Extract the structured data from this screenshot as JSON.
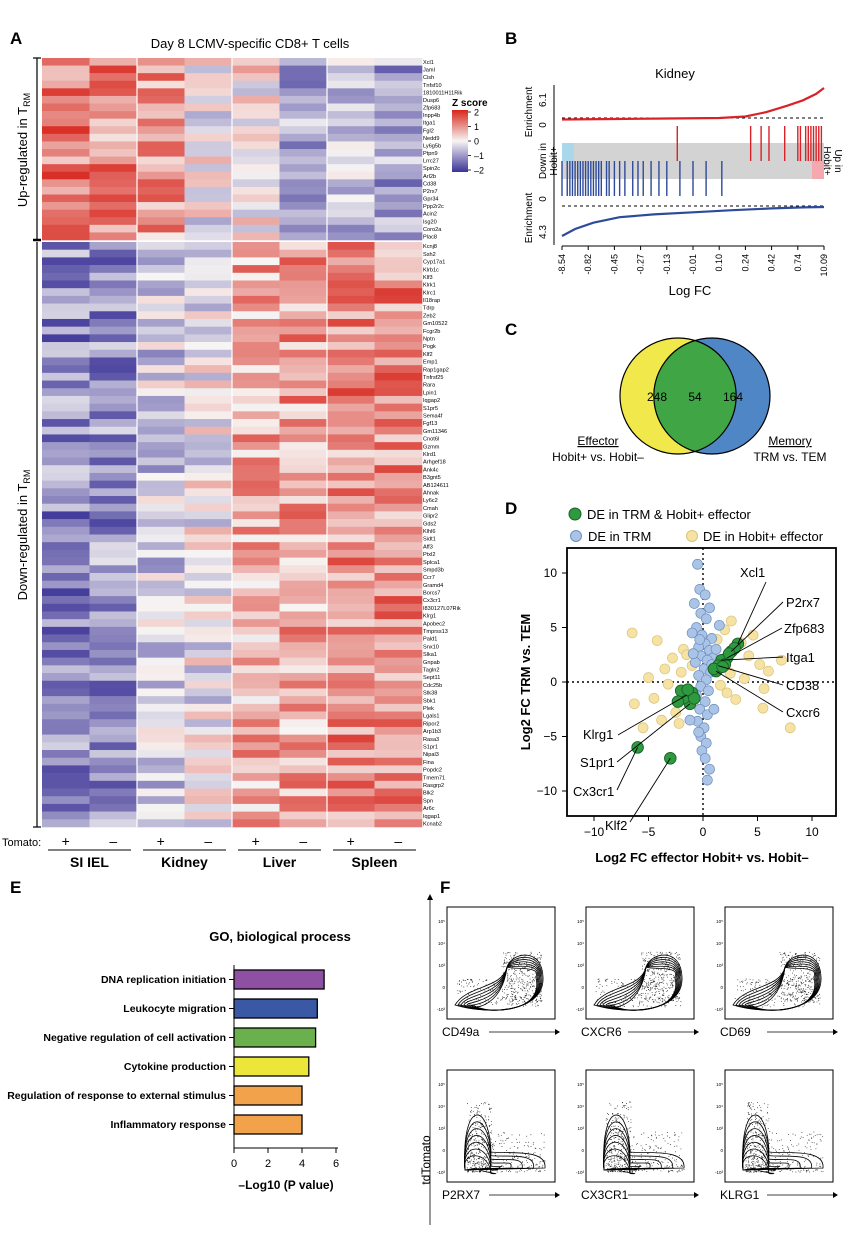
{
  "colors": {
    "zlow": "#3b3397",
    "zmid": "#f7f5f3",
    "zhigh": "#d7261c",
    "enrich_up": "#d92228",
    "enrich_down": "#2e4a9b",
    "venn_left": "#f1e84b",
    "venn_right": "#4f86c6",
    "venn_overlap": "#3fa545",
    "de_both": "#2e9a3f",
    "de_trm": "#a9c4e6",
    "de_hobit": "#f6e3a4",
    "bar_colors": [
      "#8e50a3",
      "#3b58a5",
      "#6ab04c",
      "#ece53a",
      "#f2a24b",
      "#f2a24b"
    ]
  },
  "chart_data": [
    {
      "panel": "A",
      "type": "heatmap",
      "title": "Day 8 LCMV-specific CD8+ T cells",
      "colorbar": {
        "label": "Z score",
        "ticks": [
          "2",
          "1",
          "0",
          "–1",
          "–2"
        ],
        "range": [
          -2,
          2
        ]
      },
      "row_groups": [
        {
          "label": "Up-regulated in T",
          "sub": "RM"
        },
        {
          "label": "Down-regulated in T",
          "sub": "RM"
        }
      ],
      "tomato_label": "Tomato:",
      "tomato_signs": [
        "+",
        "–",
        "+",
        "–",
        "+",
        "–",
        "+",
        "–"
      ],
      "tissues": [
        "SI IEL",
        "Kidney",
        "Liver",
        "Spleen"
      ],
      "genes_up": [
        "Xcl1",
        "Jaml",
        "Cish",
        "Tnfsf10",
        "1810011H11Rik",
        "Dusp6",
        "Zfp683",
        "Inpp4b",
        "Itga1",
        "Fgl2",
        "Nedd9",
        "Ly6g5b",
        "Ptpn9",
        "Lrrc27",
        "Spin2c",
        "Arl2b",
        "Cd38",
        "P2rx7",
        "Gpr34",
        "Ppp2r2c",
        "Acin2",
        "Isg20",
        "Coro2a",
        "Plac8"
      ],
      "genes_down": [
        "Kcnj8",
        "Ssh2",
        "Cyp17a1",
        "Klrb1c",
        "Klf3",
        "Klrk1",
        "Klrc1",
        "Il18rap",
        "Tdrp",
        "Zeb2",
        "Gm10522",
        "Fcgr2b",
        "Nptn",
        "Pogk",
        "Klf2",
        "Emp1",
        "Rap1gap2",
        "Tnfrsf25",
        "Rara",
        "Lpin1",
        "Iqgap2",
        "S1pr5",
        "Sema4f",
        "Fgf13",
        "Gm11346",
        "Cnot6l",
        "Gzmm",
        "Klrd1",
        "Arhgef18",
        "Ank4c",
        "B3gnt5",
        "AB124611",
        "Ahnak",
        "Ly6c2",
        "Cmah",
        "Glipr2",
        "Gds2",
        "Klhl6",
        "Sidt1",
        "Aff3",
        "Ptxl2",
        "Splca1",
        "Smpd3b",
        "Ccr7",
        "Gramd4",
        "Borcs7",
        "Cx3cr1",
        "I830127L07Rik",
        "Klrg1",
        "Apobec2",
        "Tmprss13",
        "Pald1",
        "Snx10",
        "Slka1",
        "Gnpab",
        "Tagln2",
        "Sept11",
        "Cdc25b",
        "Stk38",
        "Sbk1",
        "Plek",
        "Lgals1",
        "Ripor2",
        "Arp1b3",
        "Rasa3",
        "S1pr1",
        "Nipal3",
        "Fina",
        "Popdc2",
        "Tmem71",
        "Rasgrp2",
        "Blk2",
        "Spn",
        "Ar6c",
        "Iqgap1",
        "Kcnab2"
      ],
      "up_profile": [
        1.2,
        1.0,
        0.9,
        -0.1,
        0.1,
        -0.7,
        -0.5,
        -0.8
      ],
      "down_profile": [
        -1.1,
        -1.0,
        -0.4,
        -0.1,
        0.7,
        0.8,
        1.0,
        1.0
      ]
    },
    {
      "panel": "B",
      "type": "line",
      "title": "Kidney",
      "ylabel_top": "Enrichment",
      "top_ticks": [
        "6.1",
        "0"
      ],
      "ylabel_bottom": "Enrichment",
      "bottom_ticks": [
        "0",
        "4.3"
      ],
      "left_band_label": [
        "Down in",
        "Hobit+"
      ],
      "right_band_label": [
        "Up in",
        "Hobit+"
      ],
      "xlabel": "Log FC",
      "x_ticks": [
        "-8.54",
        "-0.82",
        "-0.45",
        "-0.27",
        "-0.13",
        "-0.01",
        "0.10",
        "0.24",
        "0.42",
        "0.74",
        "10.09"
      ],
      "up_curve": [
        [
          0,
          -0.3
        ],
        [
          0.2,
          -0.2
        ],
        [
          0.4,
          -0.1
        ],
        [
          0.6,
          0.0
        ],
        [
          0.7,
          0.3
        ],
        [
          0.78,
          1.2
        ],
        [
          0.86,
          2.5
        ],
        [
          0.92,
          3.6
        ],
        [
          0.97,
          4.9
        ],
        [
          1.0,
          6.1
        ]
      ],
      "down_curve": [
        [
          0,
          -4.3
        ],
        [
          0.05,
          -3.3
        ],
        [
          0.12,
          -2.4
        ],
        [
          0.22,
          -1.6
        ],
        [
          0.35,
          -1.2
        ],
        [
          0.5,
          -0.9
        ],
        [
          0.65,
          -0.6
        ],
        [
          0.8,
          -0.35
        ],
        [
          0.92,
          -0.2
        ],
        [
          1.0,
          -0.15
        ]
      ],
      "red_hits": [
        0.44,
        0.72,
        0.76,
        0.79,
        0.85,
        0.9,
        0.91,
        0.93,
        0.94,
        0.95,
        0.96,
        0.97,
        0.98,
        0.99
      ],
      "blue_hits": [
        0.0,
        0.02,
        0.03,
        0.04,
        0.05,
        0.06,
        0.07,
        0.08,
        0.09,
        0.1,
        0.11,
        0.12,
        0.13,
        0.14,
        0.15,
        0.17,
        0.18,
        0.2,
        0.22,
        0.24,
        0.27,
        0.29,
        0.31,
        0.34,
        0.37,
        0.4,
        0.45,
        0.5,
        0.55,
        0.61
      ]
    },
    {
      "panel": "C",
      "type": "venn",
      "title": "Kidney",
      "left_count": "248",
      "overlap_count": "54",
      "right_count": "164",
      "left_label": "Effector",
      "left_sub": "Hobit+ vs. Hobit–",
      "right_label": "Memory",
      "right_sub": "TRM vs. TEM"
    },
    {
      "panel": "D",
      "type": "scatter",
      "legend": [
        "DE in TRM & Hobit+ effector",
        "DE in TRM",
        "DE in Hobit+ effector"
      ],
      "xlabel": "Log2 FC effector Hobit+ vs. Hobit–",
      "ylabel": "Log2 FC TRM vs. TEM",
      "xlim": [
        -12,
        12
      ],
      "ylim": [
        -12,
        12
      ],
      "x_ticks": [
        -10,
        -5,
        0,
        5,
        10
      ],
      "y_ticks": [
        10,
        5,
        0,
        -5,
        -10
      ],
      "labels": [
        {
          "text": "Xcl1",
          "x": 3.2,
          "y": 3.5
        },
        {
          "text": "P2rx7",
          "x": 2.6,
          "y": 2.8
        },
        {
          "text": "Zfp683",
          "x": 2.2,
          "y": 2.2
        },
        {
          "text": "Itga1",
          "x": 1.7,
          "y": 2.0
        },
        {
          "text": "CD38",
          "x": 1.4,
          "y": 1.5
        },
        {
          "text": "Cxcr6",
          "x": 1.2,
          "y": 1.0
        },
        {
          "text": "Klrg1",
          "x": -1.5,
          "y": -1.2
        },
        {
          "text": "S1pr1",
          "x": -1.2,
          "y": -2.0
        },
        {
          "text": "Cx3cr1",
          "x": -6.0,
          "y": -6.0
        },
        {
          "text": "Klf2",
          "x": -3.0,
          "y": -7.0
        }
      ],
      "series_both": [
        [
          3.2,
          3.5
        ],
        [
          2.6,
          2.8
        ],
        [
          2.2,
          2.2
        ],
        [
          1.7,
          2.0
        ],
        [
          1.4,
          1.5
        ],
        [
          1.2,
          1.0
        ],
        [
          2.9,
          3.1
        ],
        [
          2.0,
          1.6
        ],
        [
          2.4,
          2.6
        ],
        [
          1.0,
          1.2
        ],
        [
          1.8,
          1.4
        ],
        [
          -1.5,
          -1.2
        ],
        [
          -1.2,
          -2.0
        ],
        [
          -1.8,
          -1.5
        ],
        [
          -1.0,
          -1.0
        ],
        [
          -2.0,
          -0.8
        ],
        [
          -0.8,
          -1.5
        ],
        [
          -6.0,
          -6.0
        ],
        [
          -3.0,
          -7.0
        ],
        [
          -1.4,
          -0.7
        ],
        [
          -2.3,
          -1.8
        ]
      ],
      "series_trm": [
        [
          -0.5,
          10.8
        ],
        [
          -0.3,
          8.5
        ],
        [
          0.2,
          8.0
        ],
        [
          -0.8,
          7.2
        ],
        [
          0.6,
          6.8
        ],
        [
          -0.2,
          6.3
        ],
        [
          0.3,
          5.8
        ],
        [
          -0.6,
          5.0
        ],
        [
          -0.1,
          4.3
        ],
        [
          0.8,
          4.0
        ],
        [
          0.2,
          3.5
        ],
        [
          -0.4,
          3.2
        ],
        [
          0.6,
          2.9
        ],
        [
          -0.2,
          2.4
        ],
        [
          0.9,
          2.2
        ],
        [
          0.4,
          2.0
        ],
        [
          -0.7,
          1.8
        ],
        [
          0.1,
          1.2
        ],
        [
          0.7,
          0.9
        ],
        [
          -0.4,
          0.6
        ],
        [
          0.3,
          0.2
        ],
        [
          -0.2,
          -0.4
        ],
        [
          0.5,
          -0.8
        ],
        [
          -0.6,
          -1.2
        ],
        [
          0.2,
          -1.8
        ],
        [
          -0.3,
          -2.5
        ],
        [
          0.4,
          -3.0
        ],
        [
          -0.5,
          -3.6
        ],
        [
          0.1,
          -4.2
        ],
        [
          -0.2,
          -5.0
        ],
        [
          0.3,
          -5.6
        ],
        [
          -0.1,
          -6.3
        ],
        [
          0.2,
          -7.0
        ],
        [
          0.6,
          -8.0
        ],
        [
          0.4,
          -9.0
        ],
        [
          -0.4,
          -4.6
        ],
        [
          1.2,
          3.0
        ],
        [
          -1.0,
          4.5
        ],
        [
          1.5,
          5.2
        ],
        [
          -1.2,
          -3.5
        ],
        [
          1.0,
          -2.5
        ],
        [
          -0.9,
          2.6
        ],
        [
          0.8,
          1.6
        ],
        [
          -0.3,
          3.9
        ]
      ],
      "series_hobit": [
        [
          -6.5,
          4.5
        ],
        [
          -4.2,
          3.8
        ],
        [
          -3.5,
          1.2
        ],
        [
          -5.0,
          0.4
        ],
        [
          -2.8,
          2.2
        ],
        [
          -2.0,
          0.9
        ],
        [
          -3.2,
          -0.2
        ],
        [
          -4.5,
          -1.5
        ],
        [
          -6.3,
          -2.0
        ],
        [
          -2.5,
          -2.8
        ],
        [
          -3.8,
          -3.5
        ],
        [
          -1.8,
          3.0
        ],
        [
          -2.2,
          -3.8
        ],
        [
          -5.5,
          -4.2
        ],
        [
          2.0,
          4.8
        ],
        [
          2.6,
          5.6
        ],
        [
          3.5,
          3.6
        ],
        [
          4.2,
          2.4
        ],
        [
          5.2,
          1.6
        ],
        [
          6.0,
          1.0
        ],
        [
          7.2,
          2.0
        ],
        [
          5.6,
          -0.6
        ],
        [
          5.5,
          -2.4
        ],
        [
          8.0,
          -4.2
        ],
        [
          3.0,
          -1.6
        ],
        [
          3.8,
          0.3
        ],
        [
          2.5,
          0.8
        ],
        [
          1.6,
          -0.3
        ],
        [
          -1.0,
          1.5
        ],
        [
          -1.5,
          2.5
        ],
        [
          4.6,
          4.3
        ],
        [
          1.3,
          3.9
        ],
        [
          -0.9,
          -2.0
        ],
        [
          2.2,
          -1.0
        ]
      ]
    },
    {
      "panel": "E",
      "type": "bar",
      "title": "GO, biological process",
      "categories": [
        "DNA replication initiation",
        "Leukocyte migration",
        "Negative regulation of cell activation",
        "Cytokine production",
        "Regulation of response to external stimulus",
        "Inflammatory response"
      ],
      "values": [
        5.3,
        4.9,
        4.8,
        4.4,
        4.0,
        4.0
      ],
      "xlim": [
        0,
        6
      ],
      "x_ticks": [
        "0",
        "2",
        "4",
        "6"
      ],
      "xlabel": "–Log10 (P value)"
    },
    {
      "panel": "F",
      "type": "scatter",
      "ylabel": "tdTomato",
      "panels": [
        "CD49a",
        "CXCR6",
        "CD69",
        "P2RX7",
        "CX3CR1",
        "KLRG1"
      ],
      "axis_ticks": [
        "-10³",
        "0",
        "10³",
        "10⁴",
        "10⁵"
      ]
    }
  ],
  "panel_letters": [
    "A",
    "B",
    "C",
    "D",
    "E",
    "F"
  ]
}
